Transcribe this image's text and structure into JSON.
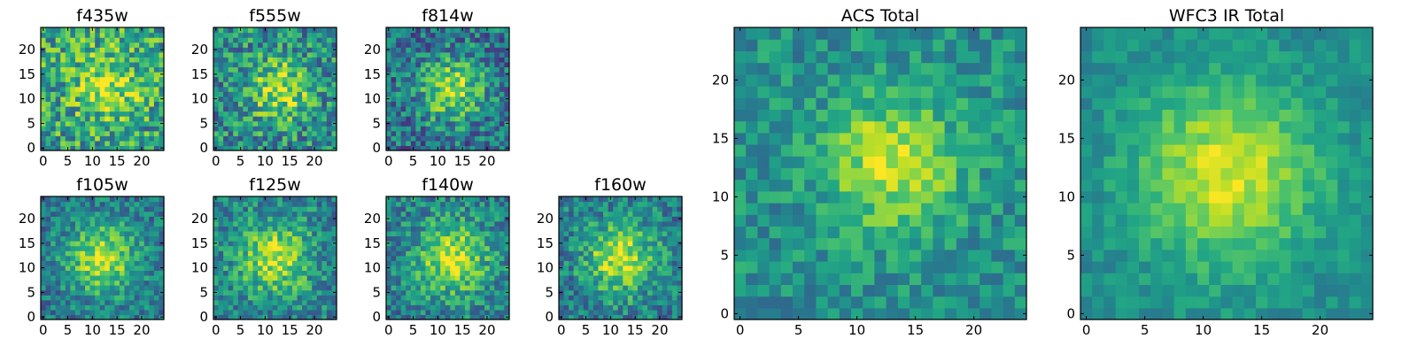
{
  "chart_data": [
    {
      "type": "heatmap",
      "title": "f435w",
      "xlim": [
        0,
        24
      ],
      "ylim": [
        0,
        24
      ],
      "xticks": [
        0,
        5,
        10,
        15,
        20
      ],
      "yticks": [
        0,
        5,
        10,
        15,
        20
      ],
      "colormap": "viridis",
      "grid": false,
      "seed": 11,
      "sigma": 4.5,
      "peak": 0.35,
      "noise": 0.3,
      "base": 0.58,
      "blob_x": 13,
      "blob_y": 13
    },
    {
      "type": "heatmap",
      "title": "f555w",
      "xlim": [
        0,
        24
      ],
      "ylim": [
        0,
        24
      ],
      "xticks": [
        0,
        5,
        10,
        15,
        20
      ],
      "yticks": [
        0,
        5,
        10,
        15,
        20
      ],
      "colormap": "viridis",
      "grid": false,
      "seed": 23,
      "sigma": 4.5,
      "peak": 0.4,
      "noise": 0.28,
      "base": 0.48,
      "blob_x": 13,
      "blob_y": 12
    },
    {
      "type": "heatmap",
      "title": "f814w",
      "xlim": [
        0,
        24
      ],
      "ylim": [
        0,
        24
      ],
      "xticks": [
        0,
        5,
        10,
        15,
        20
      ],
      "yticks": [
        0,
        5,
        10,
        15,
        20
      ],
      "colormap": "viridis",
      "grid": false,
      "seed": 37,
      "sigma": 4.5,
      "peak": 0.48,
      "noise": 0.26,
      "base": 0.38,
      "blob_x": 13,
      "blob_y": 12
    },
    {
      "type": "heatmap",
      "title": "f105w",
      "xlim": [
        0,
        24
      ],
      "ylim": [
        0,
        24
      ],
      "xticks": [
        0,
        5,
        10,
        15,
        20
      ],
      "yticks": [
        0,
        5,
        10,
        15,
        20
      ],
      "colormap": "viridis",
      "grid": false,
      "seed": 41,
      "sigma": 5.0,
      "peak": 0.5,
      "noise": 0.2,
      "base": 0.4,
      "blob_x": 12,
      "blob_y": 12
    },
    {
      "type": "heatmap",
      "title": "f125w",
      "xlim": [
        0,
        24
      ],
      "ylim": [
        0,
        24
      ],
      "xticks": [
        0,
        5,
        10,
        15,
        20
      ],
      "yticks": [
        0,
        5,
        10,
        15,
        20
      ],
      "colormap": "viridis",
      "grid": false,
      "seed": 53,
      "sigma": 5.0,
      "peak": 0.45,
      "noise": 0.22,
      "base": 0.45,
      "blob_x": 12,
      "blob_y": 12
    },
    {
      "type": "heatmap",
      "title": "f140w",
      "xlim": [
        0,
        24
      ],
      "ylim": [
        0,
        24
      ],
      "xticks": [
        0,
        5,
        10,
        15,
        20
      ],
      "yticks": [
        0,
        5,
        10,
        15,
        20
      ],
      "colormap": "viridis",
      "grid": false,
      "seed": 67,
      "sigma": 5.0,
      "peak": 0.48,
      "noise": 0.22,
      "base": 0.44,
      "blob_x": 13,
      "blob_y": 12
    },
    {
      "type": "heatmap",
      "title": "f160w",
      "xlim": [
        0,
        24
      ],
      "ylim": [
        0,
        24
      ],
      "xticks": [
        0,
        5,
        10,
        15,
        20
      ],
      "yticks": [
        0,
        5,
        10,
        15,
        20
      ],
      "colormap": "viridis",
      "grid": false,
      "seed": 79,
      "sigma": 5.0,
      "peak": 0.5,
      "noise": 0.22,
      "base": 0.42,
      "blob_x": 12,
      "blob_y": 12
    },
    {
      "type": "heatmap",
      "title": "ACS Total",
      "xlim": [
        0,
        24
      ],
      "ylim": [
        0,
        24
      ],
      "xticks": [
        0,
        5,
        10,
        15,
        20
      ],
      "yticks": [
        0,
        5,
        10,
        15,
        20
      ],
      "colormap": "viridis",
      "grid": false,
      "seed": 97,
      "sigma": 4.0,
      "peak": 0.42,
      "noise": 0.16,
      "base": 0.5,
      "blob_x": 13,
      "blob_y": 13
    },
    {
      "type": "heatmap",
      "title": "WFC3 IR Total",
      "xlim": [
        0,
        24
      ],
      "ylim": [
        0,
        24
      ],
      "xticks": [
        0,
        5,
        10,
        15,
        20
      ],
      "yticks": [
        0,
        5,
        10,
        15,
        20
      ],
      "colormap": "viridis",
      "grid": false,
      "seed": 113,
      "sigma": 5.5,
      "peak": 0.45,
      "noise": 0.1,
      "base": 0.48,
      "blob_x": 12,
      "blob_y": 12
    }
  ]
}
